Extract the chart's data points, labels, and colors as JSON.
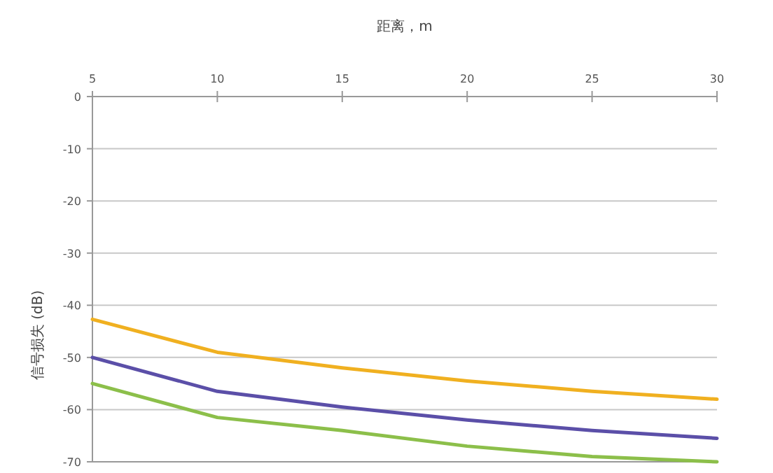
{
  "chart_data": {
    "type": "line",
    "xlabel": "距离，m",
    "ylabel": "信号损失 (dB)",
    "x": [
      5,
      10,
      15,
      20,
      25,
      30
    ],
    "series": [
      {
        "color": "#f0b020",
        "values": [
          -42.7,
          -49,
          -52,
          -54.5,
          -56.5,
          -58
        ]
      },
      {
        "color": "#5b4fa8",
        "values": [
          -50,
          -56.5,
          -59.5,
          -62,
          -64,
          -65.5
        ]
      },
      {
        "color": "#8cbf4a",
        "values": [
          -55,
          -61.5,
          -64,
          -67,
          -69,
          -70
        ]
      }
    ],
    "xlim": [
      5,
      30
    ],
    "xticks": [
      5,
      10,
      15,
      20,
      25,
      30
    ],
    "ylim": [
      -70,
      0
    ],
    "yticks": [
      0,
      -10,
      -20,
      -30,
      -40,
      -50,
      -60,
      -70
    ],
    "grid": "y",
    "marker": "none",
    "line_style": "solid"
  }
}
